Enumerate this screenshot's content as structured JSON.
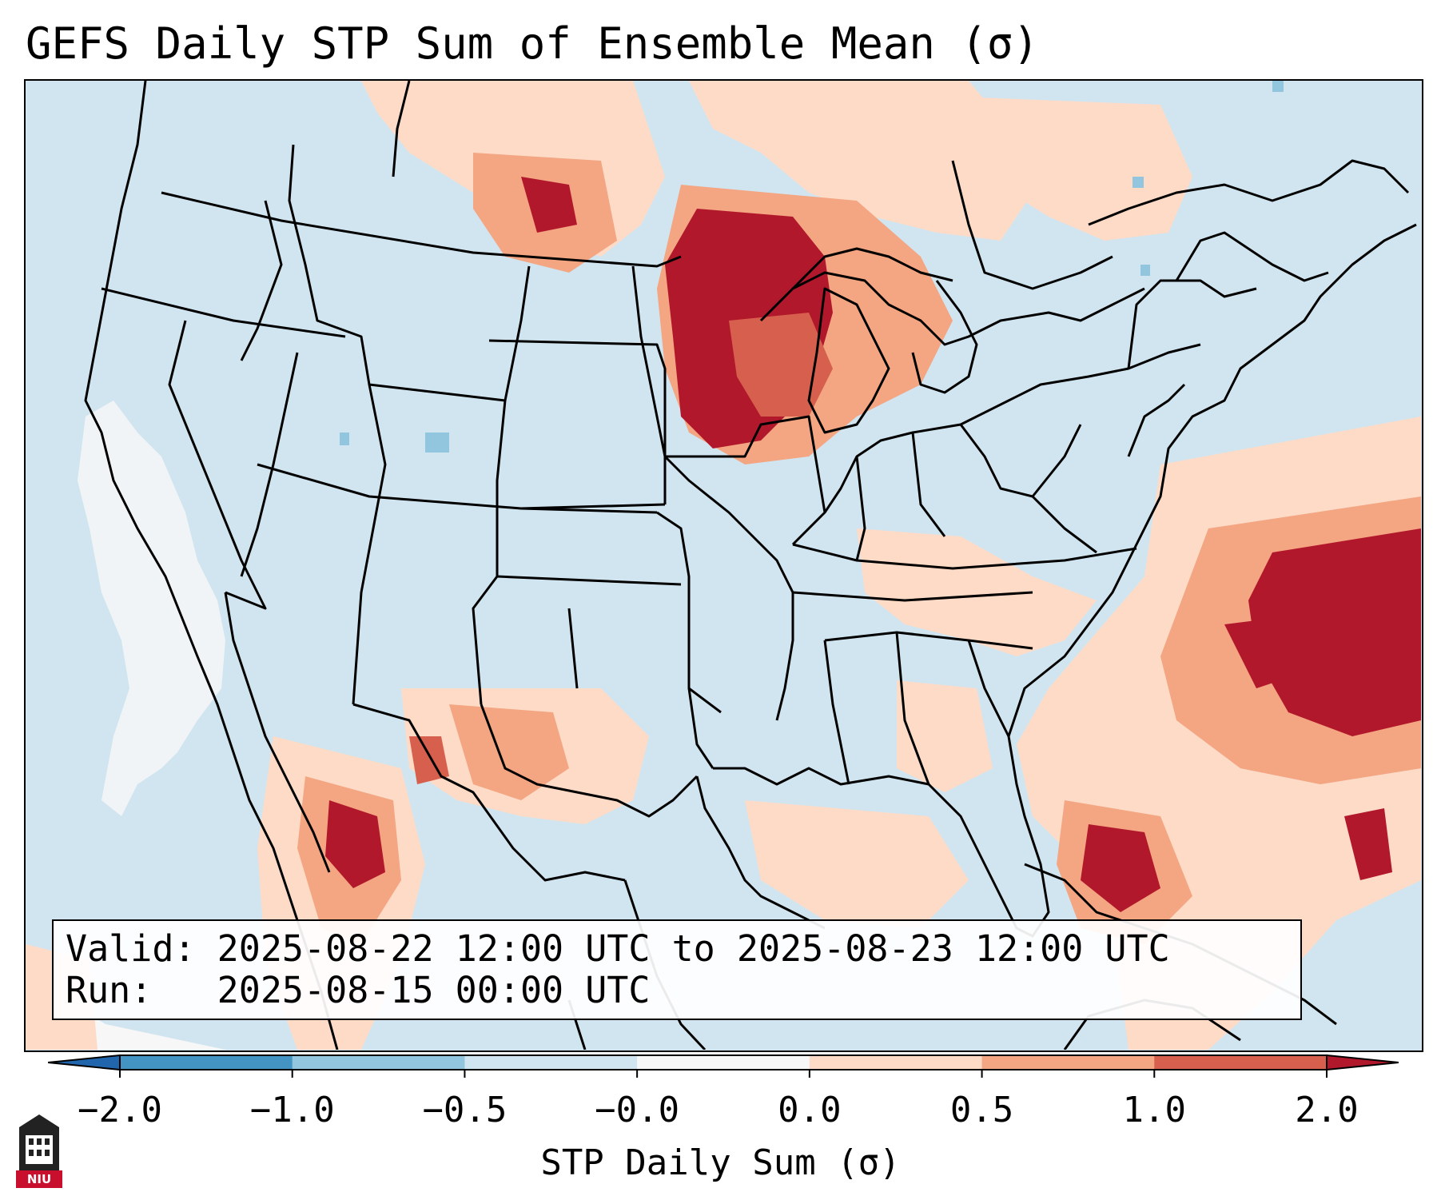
{
  "title": "GEFS Daily STP Sum of Ensemble Mean (σ)",
  "valid_line": "Valid: 2025-08-22 12:00 UTC to 2025-08-23 12:00 UTC",
  "run_line": "Run:   2025-08-15 00:00 UTC",
  "colorbar": {
    "label": "STP Daily Sum (σ)",
    "ticks": [
      "−2.0",
      "−1.0",
      "−0.5",
      "−0.0",
      "0.0",
      "0.5",
      "1.0",
      "2.0"
    ],
    "colors": [
      "#2166ac",
      "#4393c3",
      "#92c5de",
      "#d1e5f0",
      "#f7f7f7",
      "#fddbc7",
      "#f4a582",
      "#d6604d",
      "#b2182b"
    ],
    "extend": "both"
  },
  "logo": {
    "text": "NIU",
    "color": "#c8102e"
  },
  "map": {
    "region": "Contiguous United States, southern Canada, northern Mexico",
    "ocean_land_color": "#d1e5f0",
    "highlights": [
      {
        "area": "Upper Midwest (MN, WI, upper MI)",
        "level": "1.0 to 2.0"
      },
      {
        "area": "Western Atlantic offshore of Carolinas",
        "level": "1.0 to 2.0"
      },
      {
        "area": "Northern Plains / southern Canada",
        "level": "0.5 to 2.0"
      },
      {
        "area": "Southern Florida / Bahamas",
        "level": "1.0 to 2.0"
      },
      {
        "area": "Northwestern Mexico (Sinaloa/Chihuahua)",
        "level": "1.0 to 2.0"
      },
      {
        "area": "Pacific coast of California / Baja",
        "level": "-0.0 to 0.0"
      }
    ]
  }
}
